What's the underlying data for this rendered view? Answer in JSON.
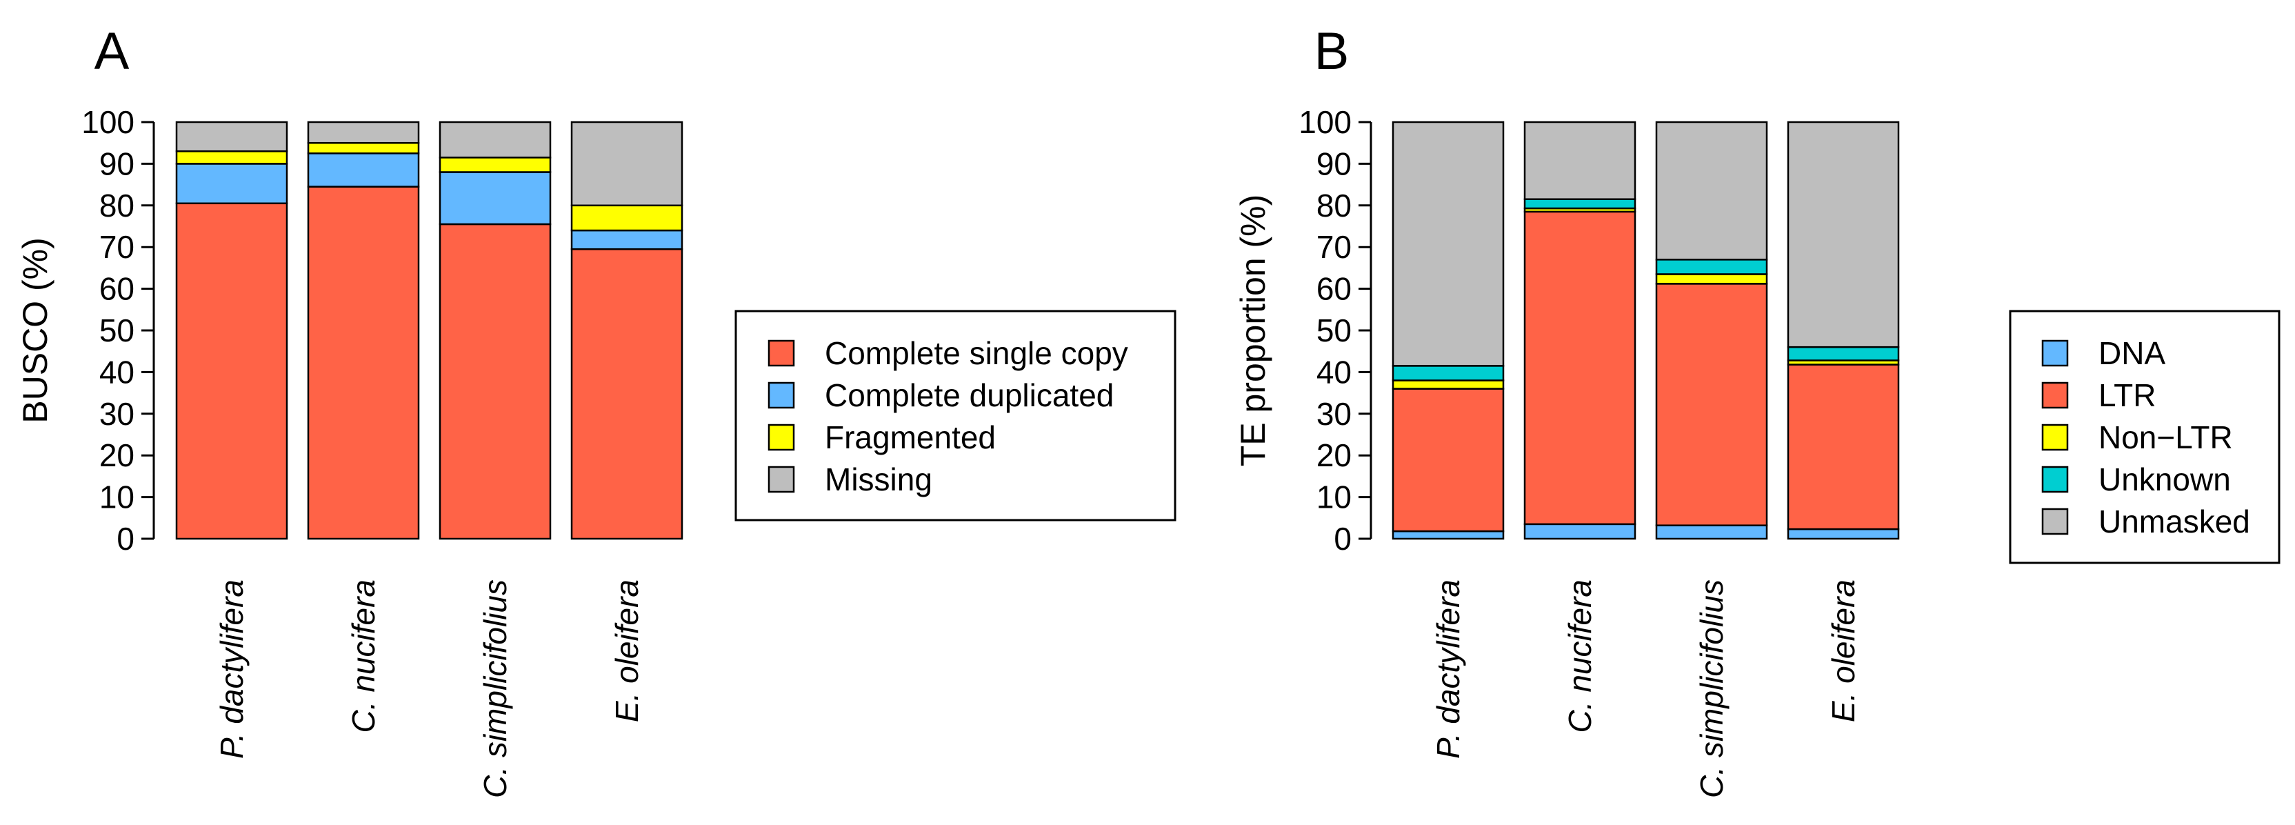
{
  "chart_data": [
    {
      "panel": "A",
      "type": "bar",
      "stacked": true,
      "ylabel": "BUSCO (%)",
      "xlabel": "",
      "ylim": [
        0,
        100
      ],
      "yticks": [
        0,
        10,
        20,
        30,
        40,
        50,
        60,
        70,
        80,
        90,
        100
      ],
      "categories": [
        "P. dactylifera",
        "C. nucifera",
        "C. simplicifolius",
        "E. oleifera"
      ],
      "series": [
        {
          "name": "Complete single copy",
          "color": "#FF6347",
          "values": [
            80.5,
            84.5,
            75.5,
            69.5
          ]
        },
        {
          "name": "Complete duplicated",
          "color": "#63B8FF",
          "values": [
            9.5,
            8.0,
            12.5,
            4.5
          ]
        },
        {
          "name": "Fragmented",
          "color": "#FFFF00",
          "values": [
            3.0,
            2.5,
            3.5,
            6.0
          ]
        },
        {
          "name": "Missing",
          "color": "#BEBEBE",
          "values": [
            7.0,
            5.0,
            8.5,
            20.0
          ]
        }
      ],
      "legend": {
        "placement": "right",
        "entries": [
          "Complete single copy",
          "Complete duplicated",
          "Fragmented",
          "Missing"
        ]
      }
    },
    {
      "panel": "B",
      "type": "bar",
      "stacked": true,
      "ylabel": "TE proportion (%)",
      "xlabel": "",
      "ylim": [
        0,
        100
      ],
      "yticks": [
        0,
        10,
        20,
        30,
        40,
        50,
        60,
        70,
        80,
        90,
        100
      ],
      "categories": [
        "P. dactylifera",
        "C. nucifera",
        "C. simplicifolius",
        "E. oleifera"
      ],
      "series": [
        {
          "name": "DNA",
          "color": "#63B8FF",
          "values": [
            1.8,
            3.5,
            3.2,
            2.3
          ]
        },
        {
          "name": "LTR",
          "color": "#FF6347",
          "values": [
            34.2,
            75.0,
            58.0,
            39.5
          ]
        },
        {
          "name": "Non−LTR",
          "color": "#FFFF00",
          "values": [
            2.0,
            0.8,
            2.3,
            1.0
          ]
        },
        {
          "name": "Unknown",
          "color": "#00CED1",
          "values": [
            3.5,
            2.2,
            3.5,
            3.2
          ]
        },
        {
          "name": "Unmasked",
          "color": "#BEBEBE",
          "values": [
            58.5,
            18.5,
            33.0,
            54.0
          ]
        }
      ],
      "legend": {
        "placement": "right",
        "entries": [
          "DNA",
          "LTR",
          "Non−LTR",
          "Unknown",
          "Unmasked"
        ]
      }
    }
  ]
}
